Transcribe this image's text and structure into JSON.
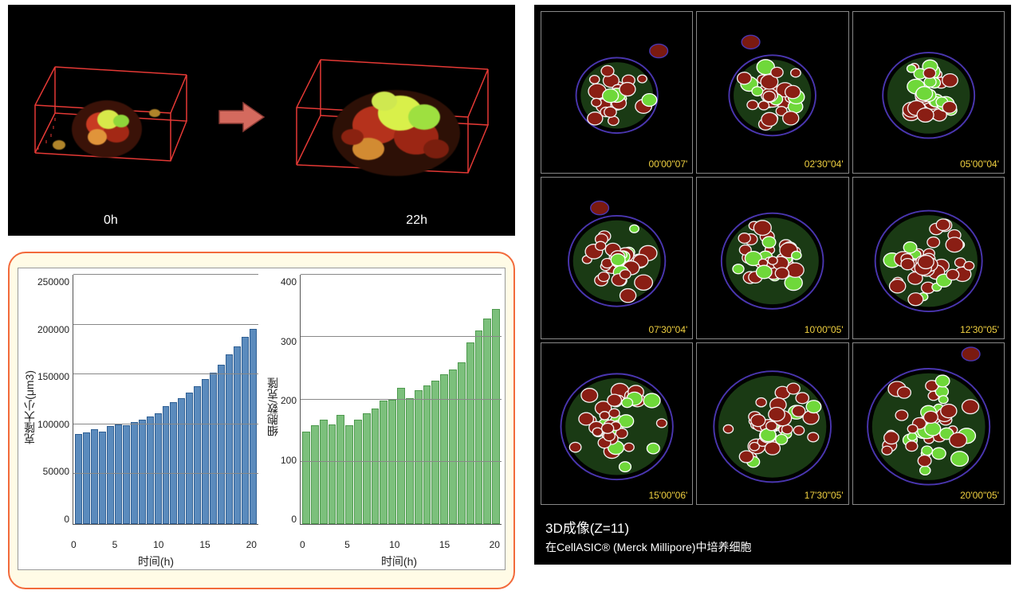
{
  "threeD": {
    "bg": "#000000",
    "wire_color": "#e53935",
    "arrow_color": "#d46a5e",
    "arrow_stroke": "#8a3a34",
    "scenes": [
      {
        "label": "0h",
        "scale": 1.0
      },
      {
        "label": "22h",
        "scale": 1.3
      }
    ]
  },
  "chart_panel": {
    "border_color": "#f26a3b",
    "bg": "#fffbe6",
    "inner_bg": "#ffffff",
    "grid_color": "#888888",
    "axis_color": "#555555"
  },
  "chart_left": {
    "type": "bar",
    "ylabel": "克隆大小(μm3)",
    "xlabel": "时间(h)",
    "bar_color": "#5b8bbd",
    "bar_border": "#2f5f93",
    "ylim_max": 250000,
    "ytick_step": 50000,
    "yticks": [
      "250000",
      "200000",
      "150000",
      "100000",
      "50000",
      "0"
    ],
    "xticks": [
      "0",
      "5",
      "10",
      "15",
      "20"
    ],
    "x": [
      0,
      1,
      2,
      3,
      4,
      5,
      6,
      7,
      8,
      9,
      10,
      11,
      12,
      13,
      14,
      15,
      16,
      17,
      18,
      19,
      20,
      21,
      22
    ],
    "values": [
      90000,
      92000,
      95000,
      93000,
      98000,
      100000,
      99000,
      102000,
      105000,
      108000,
      111000,
      118000,
      122000,
      126000,
      132000,
      138000,
      145000,
      152000,
      160000,
      170000,
      178000,
      188000,
      196000
    ]
  },
  "chart_right": {
    "type": "bar",
    "ylabel": "细胞数/克隆",
    "xlabel": "时间(h)",
    "bar_color": "#7cc07c",
    "bar_border": "#4f9a4f",
    "ylim_max": 400,
    "ytick_step": 100,
    "yticks": [
      "400",
      "300",
      "200",
      "100",
      "0"
    ],
    "xticks": [
      "0",
      "5",
      "10",
      "15",
      "20"
    ],
    "x": [
      0,
      1,
      2,
      3,
      4,
      5,
      6,
      7,
      8,
      9,
      10,
      11,
      12,
      13,
      14,
      15,
      16,
      17,
      18,
      19,
      20,
      21,
      22
    ],
    "values": [
      148,
      158,
      168,
      160,
      175,
      158,
      168,
      178,
      185,
      198,
      200,
      218,
      202,
      215,
      222,
      230,
      240,
      248,
      260,
      292,
      310,
      330,
      345
    ]
  },
  "grid": {
    "bg": "#000000",
    "cell_border": "#888888",
    "timestamp_color": "#f0d040",
    "cells": [
      {
        "ts": "00'00\"07'"
      },
      {
        "ts": "02'30\"04'"
      },
      {
        "ts": "05'00\"04'"
      },
      {
        "ts": "07'30\"04'"
      },
      {
        "ts": "10'00\"05'"
      },
      {
        "ts": "12'30\"05'"
      },
      {
        "ts": "15'00\"06'"
      },
      {
        "ts": "17'30\"05'"
      },
      {
        "ts": "20'00\"05'"
      }
    ]
  },
  "caption": {
    "line1": "3D成像(Z=11)",
    "line2": "在CellASIC® (Merck Millipore)中培养细胞"
  }
}
